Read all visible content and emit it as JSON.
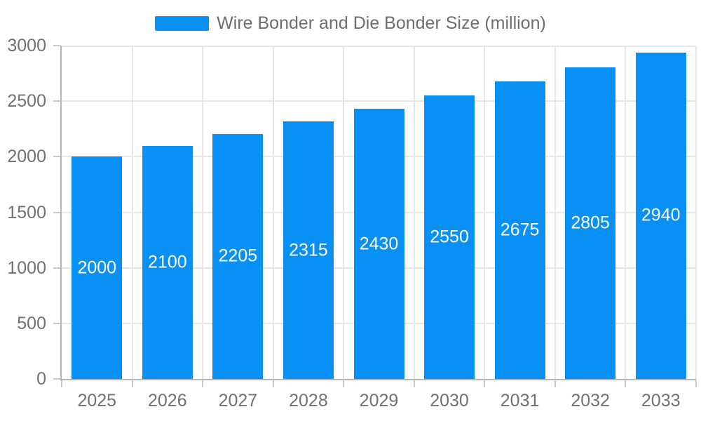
{
  "chart_data": {
    "type": "bar",
    "title": "Wire Bonder and Die Bonder Size (million)",
    "series_name": "Wire Bonder and Die Bonder Size (million)",
    "categories": [
      "2025",
      "2026",
      "2027",
      "2028",
      "2029",
      "2030",
      "2031",
      "2032",
      "2033"
    ],
    "values": [
      2000,
      2100,
      2205,
      2315,
      2430,
      2550,
      2675,
      2805,
      2940
    ],
    "xlabel": "",
    "ylabel": "",
    "ylim": [
      0,
      3000
    ],
    "y_ticks": [
      0,
      500,
      1000,
      1500,
      2000,
      2500,
      3000
    ],
    "grid": true,
    "legend_position": "top",
    "value_labels": "inside-center",
    "colors": {
      "bar": "#0890f5",
      "bar_label": "#ffffff",
      "axis_label": "#717171",
      "title": "#6e6e6e",
      "grid_line": "#e6e6e6",
      "axis_line": "#b5b5b5",
      "tick": "#c9c9c9",
      "background": "#ffffff"
    }
  }
}
